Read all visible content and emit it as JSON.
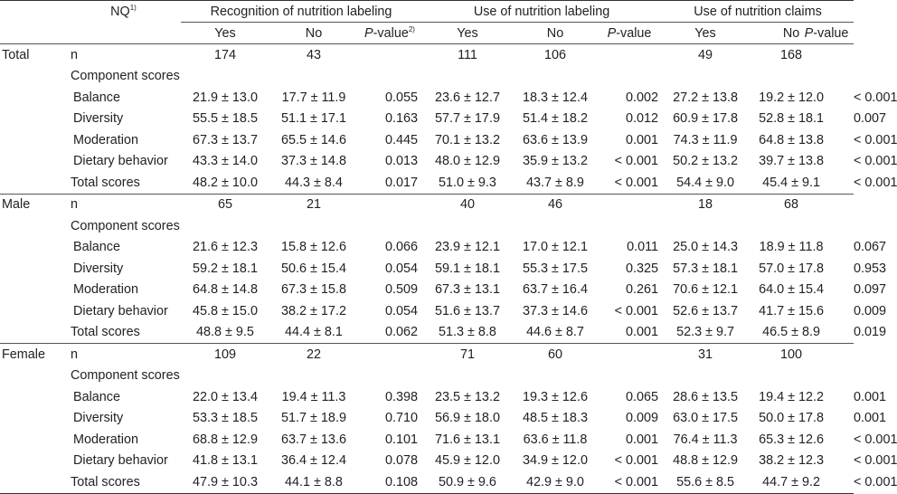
{
  "header": {
    "nq_label": "NQ",
    "nq_sup": "1)",
    "groups": [
      "Recognition of nutrition labeling",
      "Use of nutrition labeling",
      "Use of nutrition claims"
    ],
    "yes": "Yes",
    "no": "No",
    "p_italic": "P",
    "p_rest": "-value",
    "p_sup": "2)"
  },
  "sections": [
    {
      "group": "Total",
      "n": [
        "174",
        "43",
        "111",
        "106",
        "49",
        "168"
      ],
      "rows": [
        {
          "label": "Balance",
          "v": [
            "21.9 ± 13.0",
            "17.7 ± 11.9",
            "0.055",
            "23.6 ± 12.7",
            "18.3 ± 12.4",
            "0.002",
            "27.2 ± 13.8",
            "19.2 ± 12.0",
            "< 0.001"
          ]
        },
        {
          "label": "Diversity",
          "v": [
            "55.5 ± 18.5",
            "51.1 ± 17.1",
            "0.163",
            "57.7 ± 17.9",
            "51.4 ± 18.2",
            "0.012",
            "60.9 ± 17.8",
            "52.8 ± 18.1",
            "0.007"
          ]
        },
        {
          "label": "Moderation",
          "v": [
            "67.3 ± 13.7",
            "65.5 ± 14.6",
            "0.445",
            "70.1 ± 13.2",
            "63.6 ± 13.9",
            "0.001",
            "74.3 ± 11.9",
            "64.8 ± 13.8",
            "< 0.001"
          ]
        },
        {
          "label": "Dietary behavior",
          "v": [
            "43.3 ± 14.0",
            "37.3 ± 14.8",
            "0.013",
            "48.0 ± 12.9",
            "35.9 ± 13.2",
            "< 0.001",
            "50.2 ± 13.2",
            "39.7 ± 13.8",
            "< 0.001"
          ]
        }
      ],
      "total": {
        "label": "Total scores",
        "v": [
          "48.2 ± 10.0",
          "44.3 ± 8.4",
          "0.017",
          "51.0 ± 9.3",
          "43.7 ± 8.9",
          "< 0.001",
          "54.4 ± 9.0",
          "45.4 ± 9.1",
          "< 0.001"
        ]
      }
    },
    {
      "group": "Male",
      "n": [
        "65",
        "21",
        "40",
        "46",
        "18",
        "68"
      ],
      "rows": [
        {
          "label": "Balance",
          "v": [
            "21.6 ± 12.3",
            "15.8 ± 12.6",
            "0.066",
            "23.9 ± 12.1",
            "17.0 ± 12.1",
            "0.011",
            "25.0 ± 14.3",
            "18.9 ± 11.8",
            "0.067"
          ]
        },
        {
          "label": "Diversity",
          "v": [
            "59.2 ± 18.1",
            "50.6 ± 15.4",
            "0.054",
            "59.1 ± 18.1",
            "55.3 ± 17.5",
            "0.325",
            "57.3 ± 18.1",
            "57.0 ± 17.8",
            "0.953"
          ]
        },
        {
          "label": "Moderation",
          "v": [
            "64.8 ± 14.8",
            "67.3 ± 15.8",
            "0.509",
            "67.3 ± 13.1",
            "63.7 ± 16.4",
            "0.261",
            "70.6 ± 12.1",
            "64.0 ± 15.4",
            "0.097"
          ]
        },
        {
          "label": "Dietary behavior",
          "v": [
            "45.8 ± 15.0",
            "38.2 ± 17.2",
            "0.054",
            "51.6 ± 13.7",
            "37.3 ± 14.6",
            "< 0.001",
            "52.6 ± 13.7",
            "41.7 ± 15.6",
            "0.009"
          ]
        }
      ],
      "total": {
        "label": "Total scores",
        "v": [
          "48.8 ± 9.5",
          "44.4 ± 8.1",
          "0.062",
          "51.3 ± 8.8",
          "44.6 ± 8.7",
          "0.001",
          "52.3 ± 9.7",
          "46.5 ± 8.9",
          "0.019"
        ]
      }
    },
    {
      "group": "Female",
      "n": [
        "109",
        "22",
        "71",
        "60",
        "31",
        "100"
      ],
      "rows": [
        {
          "label": "Balance",
          "v": [
            "22.0 ± 13.4",
            "19.4 ± 11.3",
            "0.398",
            "23.5 ± 13.2",
            "19.3 ± 12.6",
            "0.065",
            "28.6 ± 13.5",
            "19.4 ± 12.2",
            "0.001"
          ]
        },
        {
          "label": "Diversity",
          "v": [
            "53.3 ± 18.5",
            "51.7 ± 18.9",
            "0.710",
            "56.9 ± 18.0",
            "48.5 ± 18.3",
            "0.009",
            "63.0 ± 17.5",
            "50.0 ± 17.8",
            "0.001"
          ]
        },
        {
          "label": "Moderation",
          "v": [
            "68.8 ± 12.9",
            "63.7 ± 13.6",
            "0.101",
            "71.6 ± 13.1",
            "63.6 ± 11.8",
            "0.001",
            "76.4 ± 11.3",
            "65.3 ± 12.6",
            "< 0.001"
          ]
        },
        {
          "label": "Dietary behavior",
          "v": [
            "41.8 ± 13.1",
            "36.4 ± 12.4",
            "0.078",
            "45.9 ± 12.0",
            "34.9 ± 12.0",
            "< 0.001",
            "48.8 ± 12.9",
            "38.2 ± 12.3",
            "< 0.001"
          ]
        }
      ],
      "total": {
        "label": "Total scores",
        "v": [
          "47.9 ± 10.3",
          "44.1 ± 8.8",
          "0.108",
          "50.9 ± 9.6",
          "42.9 ± 9.0",
          "< 0.001",
          "55.6 ± 8.5",
          "44.7 ± 9.2",
          "< 0.001"
        ]
      }
    }
  ],
  "labels": {
    "n": "n",
    "component": "Component scores"
  }
}
